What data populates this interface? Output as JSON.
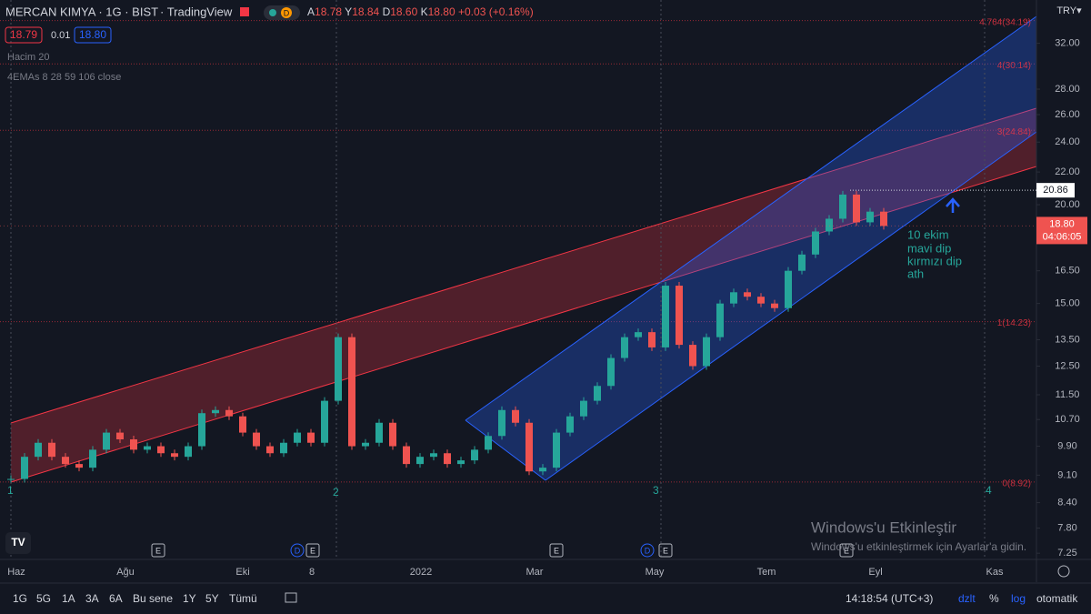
{
  "header": {
    "symbol": "MERCAN KIMYA · 1G · BIST",
    "source": "· TradingView",
    "delay": "D",
    "ohlc": [
      {
        "k": "A",
        "v": "18.78"
      },
      {
        "k": "Y",
        "v": "18.84"
      },
      {
        "k": "D",
        "v": "18.60"
      },
      {
        "k": "K",
        "v": "18.80"
      }
    ],
    "change": "+0.03 (+0.16%)",
    "bid": "18.79",
    "spread": "0.01",
    "ask": "18.80",
    "indicators": [
      "Hacim 20",
      "4EMAs 8 28 59 106 close"
    ],
    "currency": "TRY▾"
  },
  "chart": {
    "type": "candlestick",
    "log": true,
    "closes": [
      9.0,
      9.6,
      10.0,
      9.6,
      9.4,
      9.3,
      9.8,
      10.3,
      10.1,
      9.8,
      9.9,
      9.7,
      9.6,
      9.9,
      10.9,
      11.0,
      10.8,
      10.3,
      9.9,
      9.7,
      10.0,
      10.3,
      10.0,
      11.3,
      13.6,
      9.9,
      10.0,
      10.6,
      9.9,
      9.4,
      9.6,
      9.7,
      9.4,
      9.5,
      9.8,
      10.2,
      11.0,
      10.6,
      9.2,
      9.3,
      10.3,
      10.8,
      11.3,
      11.8,
      12.8,
      13.6,
      13.8,
      13.2,
      15.8,
      13.3,
      12.5,
      13.6,
      15.0,
      15.5,
      15.3,
      15.0,
      14.8,
      16.5,
      17.3,
      18.5,
      19.2,
      20.6,
      19.0,
      19.6,
      18.8
    ],
    "up_color": "#26a69a",
    "down_color": "#ef5350",
    "ylim": [
      7.12,
      36.3
    ],
    "yticks": [
      {
        "value": 32,
        "label": "32.00"
      },
      {
        "value": 28,
        "label": "28.00"
      },
      {
        "value": 26,
        "label": "26.00"
      },
      {
        "value": 24,
        "label": "24.00"
      },
      {
        "value": 22,
        "label": "22.00"
      },
      {
        "value": 20,
        "label": "20.00"
      },
      {
        "value": 16.5,
        "label": "16.50"
      },
      {
        "value": 15,
        "label": "15.00"
      },
      {
        "value": 13.5,
        "label": "13.50"
      },
      {
        "value": 12.5,
        "label": "12.50"
      },
      {
        "value": 11.5,
        "label": "11.50"
      },
      {
        "value": 10.7,
        "label": "10.70"
      },
      {
        "value": 9.9,
        "label": "9.90"
      },
      {
        "value": 9.1,
        "label": "9.10"
      },
      {
        "value": 8.4,
        "label": "8.40"
      },
      {
        "value": 7.8,
        "label": "7.80"
      },
      {
        "value": 7.25,
        "label": "7.25"
      }
    ],
    "fib_levels": [
      {
        "value": 34.19,
        "label": "4.764(34.19)"
      },
      {
        "value": 30.14,
        "label": "4(30.14)"
      },
      {
        "value": 24.84,
        "label": "3(24.84)"
      },
      {
        "value": 14.23,
        "label": "1(14.23)"
      },
      {
        "value": 8.92,
        "label": "0(8.92)"
      }
    ],
    "marker_price": {
      "value": 20.86,
      "label": "20.86"
    },
    "last_price": {
      "value": 18.8,
      "label": "18.80",
      "countdown": "04:06:05"
    }
  },
  "markers": [
    "1",
    "2",
    "3",
    "4"
  ],
  "annotation": [
    "10 ekim",
    "mavi dip",
    "kırmızı dip",
    "ath"
  ],
  "events": [
    "E",
    "D",
    "E",
    "E",
    "D",
    "E",
    "E"
  ],
  "watermark": [
    "Windows'u Etkinleştir",
    "Windows'u etkinleştirmek için Ayarlar'a gidin."
  ],
  "time_axis": [
    "Haz",
    "Ağu",
    "Eki",
    "8",
    "2022",
    "Mar",
    "May",
    "Tem",
    "Eyl",
    "Kas"
  ],
  "toolbar": {
    "ranges": [
      "1G",
      "5G",
      "1A",
      "3A",
      "6A",
      "Bu sene",
      "1Y",
      "5Y",
      "Tümü"
    ],
    "clock": "14:18:54 (UTC+3)",
    "buttons": [
      "dzlt",
      "%",
      "log",
      "otomatik"
    ]
  }
}
